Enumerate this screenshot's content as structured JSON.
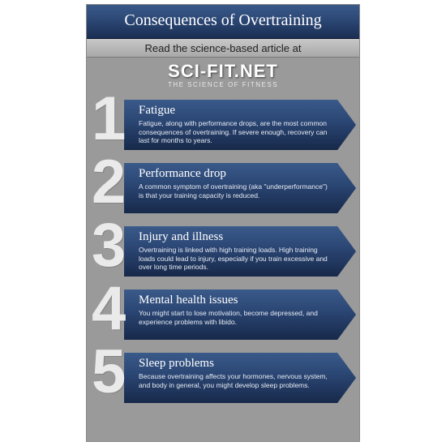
{
  "header": {
    "title": "Consequences of Overtraining"
  },
  "subheader": {
    "text": "Read the science-based article at"
  },
  "brand": {
    "name": "SCI-FIT.NET",
    "tagline": "THE SCIENCE OF FITNESS"
  },
  "colors": {
    "page_bg": "#9a9a9a",
    "header_gradient_top": "#3a5a8a",
    "header_gradient_bottom": "#1a2e52",
    "chevron_gradient_top": "#3a5a8a",
    "chevron_gradient_bottom": "#17294a",
    "number_color": "#eaeaea",
    "text_color": "#ffffff"
  },
  "typography": {
    "title_fontsize": 20,
    "item_title_fontsize": 15,
    "item_desc_fontsize": 8.5,
    "number_fontsize": 76
  },
  "items": [
    {
      "num": "1",
      "title": "Fatigue",
      "desc": "Fatigue, along with performance drops, are the most common consequences of overtraining. If severe enough, recovery can last for months to years."
    },
    {
      "num": "2",
      "title": "Performance drop",
      "desc": "A common symptom of overtraining (aka \"underperformance\") is that your training capacity is reduced."
    },
    {
      "num": "3",
      "title": "Injury and illness",
      "desc": "Overtraining is linked with high training loads. High training loads could lead to injury, especially if you train excessive and over long time periods."
    },
    {
      "num": "4",
      "title": "Mental health issues",
      "desc": "You might start to lose motivation, become depressed, and experience problems with libido."
    },
    {
      "num": "5",
      "title": "Sleep problems",
      "desc": "Because overtraining affects your hormones, nervous system, and body in general, you might develop sleep problems."
    }
  ]
}
